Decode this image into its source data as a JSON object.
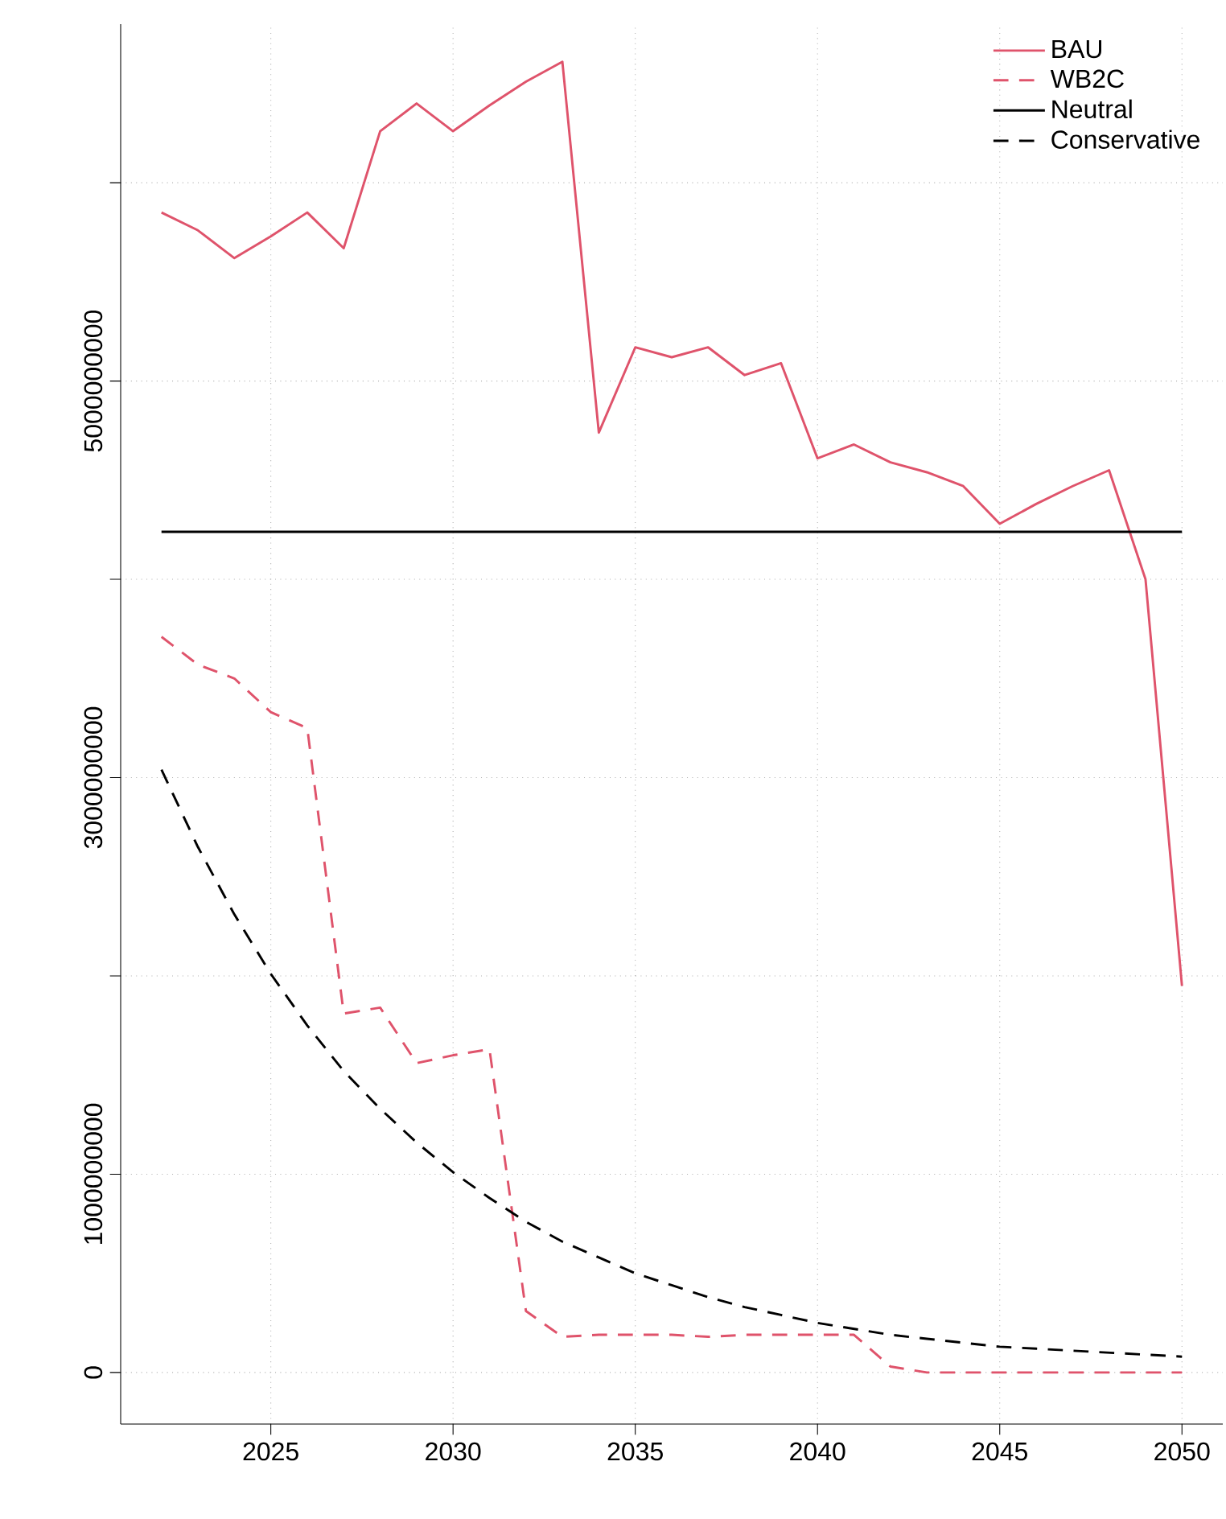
{
  "chart_data": {
    "type": "line",
    "x": [
      2022,
      2023,
      2024,
      2025,
      2026,
      2027,
      2028,
      2029,
      2030,
      2031,
      2032,
      2033,
      2034,
      2035,
      2036,
      2037,
      2038,
      2039,
      2040,
      2041,
      2042,
      2043,
      2044,
      2045,
      2046,
      2047,
      2048,
      2049,
      2050
    ],
    "series": [
      {
        "name": "BAU",
        "color": "#df536b",
        "line_style": "solid",
        "values": [
          5850000000,
          5760000000,
          5620000000,
          5730000000,
          5850000000,
          5670000000,
          6260000000,
          6400000000,
          6260000000,
          6390000000,
          6510000000,
          6610000000,
          4740000000,
          5170000000,
          5120000000,
          5170000000,
          5030000000,
          5090000000,
          4610000000,
          4680000000,
          4590000000,
          4540000000,
          4470000000,
          4280000000,
          4380000000,
          4470000000,
          4550000000,
          4000000000,
          1950000000
        ]
      },
      {
        "name": "WB2C",
        "color": "#df536b",
        "line_style": "dashed",
        "values": [
          3710000000,
          3570000000,
          3500000000,
          3330000000,
          3250000000,
          1810000000,
          1840000000,
          1560000000,
          1600000000,
          1630000000,
          310000000,
          180000000,
          190000000,
          190000000,
          190000000,
          180000000,
          190000000,
          190000000,
          190000000,
          190000000,
          30000000,
          0,
          0,
          0,
          0,
          0,
          0,
          0,
          0
        ]
      },
      {
        "name": "Neutral",
        "color": "#000000",
        "line_style": "solid",
        "values": [
          4240000000,
          4240000000,
          4240000000,
          4240000000,
          4240000000,
          4240000000,
          4240000000,
          4240000000,
          4240000000,
          4240000000,
          4240000000,
          4240000000,
          4240000000,
          4240000000,
          4240000000,
          4240000000,
          4240000000,
          4240000000,
          4240000000,
          4240000000,
          4240000000,
          4240000000,
          4240000000,
          4240000000,
          4240000000,
          4240000000,
          4240000000,
          4240000000,
          4240000000
        ]
      },
      {
        "name": "Conservative",
        "color": "#000000",
        "line_style": "dashed",
        "values": [
          3040000000,
          2650000000,
          2310000000,
          2010000000,
          1750000000,
          1520000000,
          1330000000,
          1160000000,
          1010000000,
          880000000,
          760000000,
          660000000,
          580000000,
          500000000,
          440000000,
          380000000,
          330000000,
          290000000,
          250000000,
          220000000,
          190000000,
          170000000,
          150000000,
          130000000,
          120000000,
          110000000,
          100000000,
          90000000,
          80000000
        ]
      }
    ],
    "xlim": [
      2020.88,
      2051.12
    ],
    "ylim": [
      -260000000,
      6800000000
    ],
    "xticks": [
      2025,
      2030,
      2035,
      2040,
      2045,
      2050
    ],
    "yticks": [
      0,
      1000000000,
      {
        "value": 2000000000,
        "label": null
      },
      3000000000,
      {
        "value": 4000000000,
        "label": null
      },
      5000000000,
      {
        "value": 6000000000,
        "label": null
      }
    ],
    "grid": true,
    "legend": "top right",
    "marker": "none"
  }
}
